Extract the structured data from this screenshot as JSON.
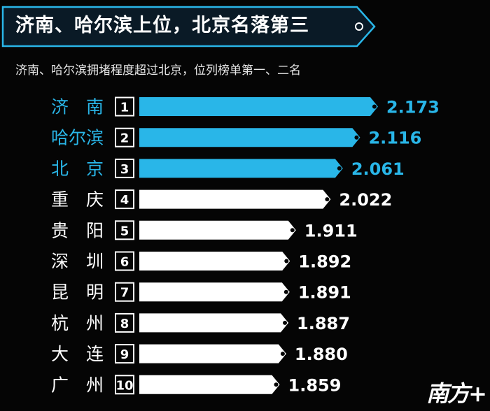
{
  "header": {
    "title": "济南、哈尔滨上位，北京名落第三",
    "subtitle": "济南、哈尔滨拥堵程度超过北京，位列榜单第一、二名"
  },
  "logo": {
    "text": "南方+"
  },
  "colors": {
    "background": "#050505",
    "highlight": "#29b6e8",
    "default_bar": "#ffffff",
    "default_label": "#ffffff",
    "banner_border": "#29b6e8"
  },
  "chart_data": {
    "type": "bar",
    "orientation": "horizontal",
    "categories": [
      "济　南",
      "哈尔滨",
      "北　京",
      "重　庆",
      "贵　阳",
      "深　圳",
      "昆　明",
      "杭　州",
      "大　连",
      "广　州"
    ],
    "ranks": [
      "1",
      "2",
      "3",
      "4",
      "5",
      "6",
      "7",
      "8",
      "9",
      "10"
    ],
    "values": [
      2.173,
      2.116,
      2.061,
      2.022,
      1.911,
      1.892,
      1.891,
      1.887,
      1.88,
      1.859
    ],
    "value_labels": [
      "2.173",
      "2.116",
      "2.061",
      "2.022",
      "1.911",
      "1.892",
      "1.891",
      "1.887",
      "1.880",
      "1.859"
    ],
    "highlighted": [
      true,
      true,
      true,
      false,
      false,
      false,
      false,
      false,
      false,
      false
    ],
    "xlim": [
      1.5,
      2.2
    ],
    "title": "",
    "xlabel": "",
    "ylabel": "",
    "grid": false,
    "legend": "none"
  }
}
